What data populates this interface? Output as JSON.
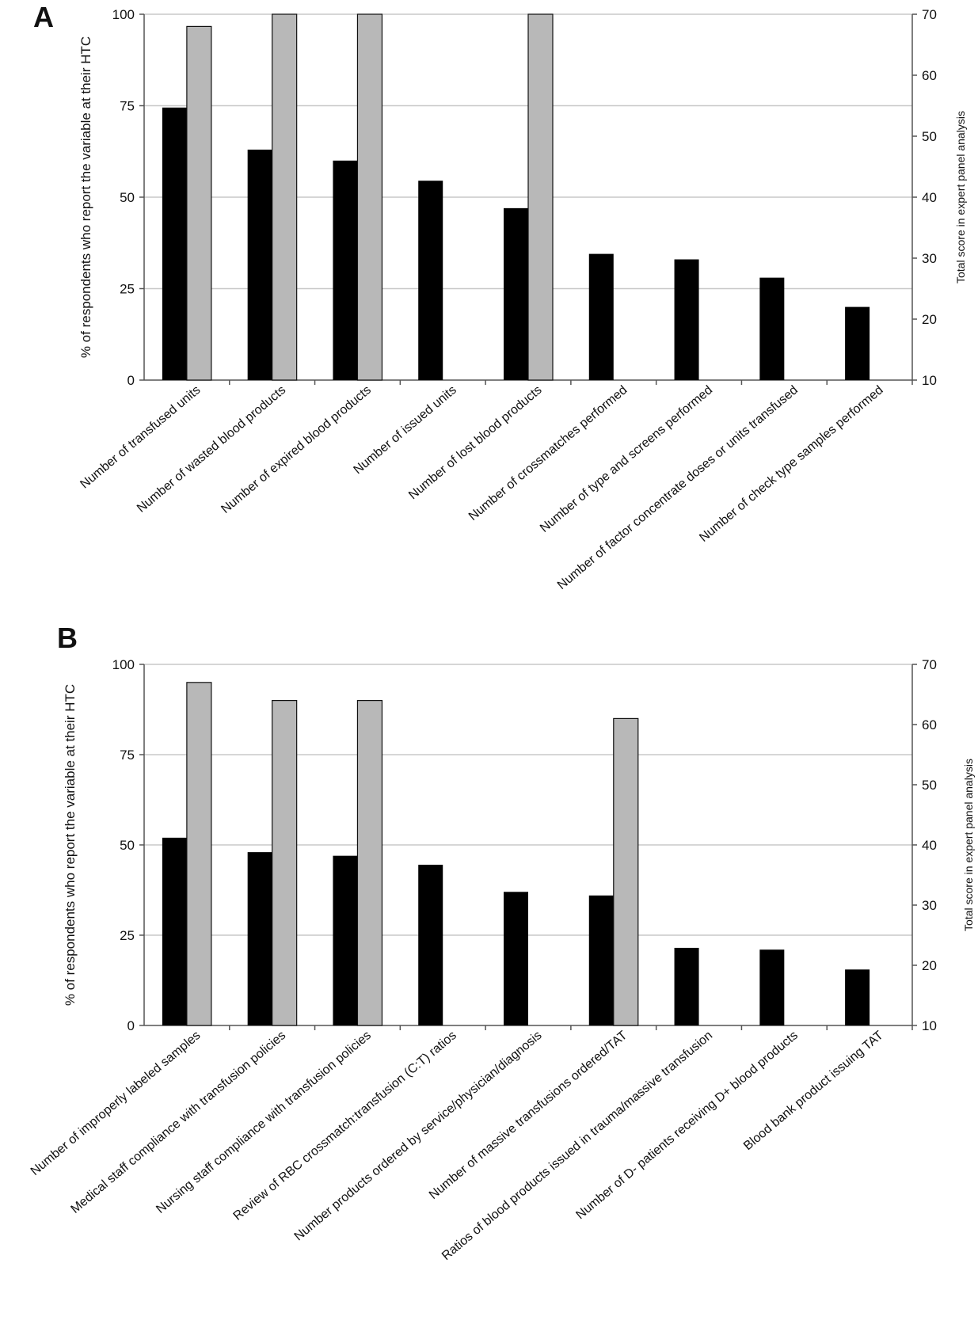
{
  "chart_data": [
    {
      "panel_label": "A",
      "type": "bar",
      "categories": [
        "Number of transfused  units",
        "Number of wasted blood products",
        "Number of expired blood products",
        "Number of issued units",
        "Number of lost blood products",
        "Number of crossmatches performed",
        "Number of type and screens performed",
        "Number of factor concentrate doses or units transfused",
        "Number of check type samples  performed"
      ],
      "series": [
        {
          "axis": "left",
          "color": "#000000",
          "values": [
            74.5,
            63,
            60,
            54.5,
            47,
            34.5,
            33,
            28,
            20
          ]
        },
        {
          "axis": "right",
          "color": "#b8b8b8",
          "values": [
            68,
            70,
            70,
            null,
            70,
            null,
            null,
            null,
            null
          ]
        }
      ],
      "ylabel": "% of respondents who report the variable at their HTC",
      "y2label": "Total score in expert panel analysis",
      "ylim": [
        0,
        100
      ],
      "yticks": [
        "0",
        "25",
        "50",
        "75",
        "100"
      ],
      "y2lim": [
        10,
        70
      ],
      "y2ticks": [
        "10",
        "20",
        "30",
        "40",
        "50",
        "60",
        "70"
      ],
      "grid": true
    },
    {
      "panel_label": "B",
      "type": "bar",
      "categories": [
        "Number of improperly labeled samples",
        "Medical staff compliance with transfusion policies",
        "Nursing staff compliance with transfusion policies",
        "Review of RBC crossmatch:transfusion (C:T) ratios",
        "Number products ordered by service/physician/diagnosis",
        "Number of massive transfusions ordered/TAT",
        "Ratios of blood products issued in trauma/massive transfusion",
        "Number of D- patients receiving D+ blood products",
        "Blood bank product issuing TAT"
      ],
      "series": [
        {
          "axis": "left",
          "color": "#000000",
          "values": [
            52,
            48,
            47,
            44.5,
            37,
            36,
            21.5,
            21,
            15.5
          ]
        },
        {
          "axis": "right",
          "color": "#b8b8b8",
          "values": [
            67,
            64,
            64,
            null,
            null,
            61,
            null,
            null,
            null
          ]
        }
      ],
      "ylabel": "% of respondents who report the variable at their HTC",
      "y2label": "Total score in expert panel analysis",
      "ylim": [
        0,
        100
      ],
      "yticks": [
        "0",
        "25",
        "50",
        "75",
        "100"
      ],
      "y2lim": [
        10,
        70
      ],
      "y2ticks": [
        "10",
        "20",
        "30",
        "40",
        "50",
        "60",
        "70"
      ],
      "grid": true
    }
  ]
}
